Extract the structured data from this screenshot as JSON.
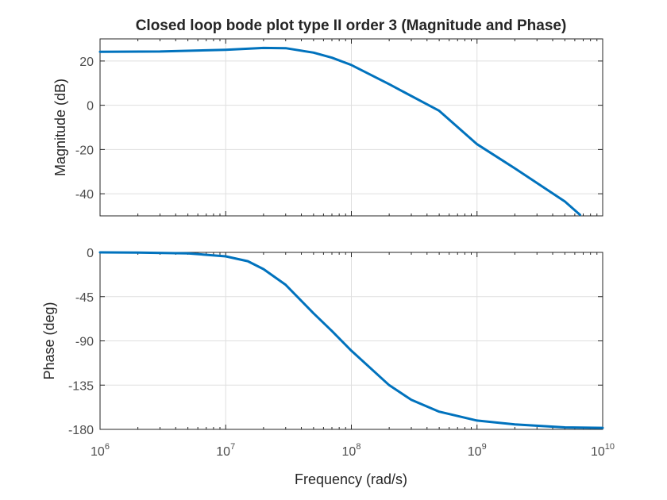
{
  "title": "Closed loop bode plot type II order 3 (Magnitude and Phase)",
  "xlabel": "Frequency (rad/s)",
  "colors": {
    "line": "#0072BD",
    "axes": "#262626",
    "grid": "#dfdfdf",
    "tick_text": "#4d4d4d"
  },
  "chart_data": [
    {
      "type": "line",
      "name": "magnitude",
      "ylabel": "Magnitude (dB)",
      "xscale": "log",
      "xlim": [
        1000000,
        10000000000
      ],
      "ylim": [
        -50,
        30
      ],
      "yticks": [
        20,
        0,
        -20,
        -40
      ],
      "grid": true,
      "series": [
        {
          "x": [
            1000000,
            3000000,
            10000000,
            20000000,
            30000000,
            50000000,
            70000000,
            100000000,
            200000000,
            500000000,
            1000000000,
            2000000000,
            5000000000,
            6600000000
          ],
          "y": [
            24.2,
            24.3,
            25.1,
            25.9,
            25.8,
            23.8,
            21.5,
            18.2,
            9.5,
            -2.5,
            -17.6,
            -28.5,
            -43.5,
            -49.5
          ]
        }
      ]
    },
    {
      "type": "line",
      "name": "phase",
      "ylabel": "Phase (deg)",
      "xlabel": "Frequency (rad/s)",
      "xscale": "log",
      "xlim": [
        1000000,
        10000000000
      ],
      "ylim": [
        -180,
        0
      ],
      "yticks": [
        0,
        -45,
        -90,
        -135,
        -180
      ],
      "xticks": [
        1000000,
        10000000,
        100000000,
        1000000000,
        10000000000
      ],
      "xtick_labels": [
        {
          "base": "10",
          "exp": "6"
        },
        {
          "base": "10",
          "exp": "7"
        },
        {
          "base": "10",
          "exp": "8"
        },
        {
          "base": "10",
          "exp": "9"
        },
        {
          "base": "10",
          "exp": "10"
        }
      ],
      "grid": true,
      "series": [
        {
          "x": [
            1000000,
            2000000,
            5000000,
            10000000,
            15000000,
            20000000,
            30000000,
            50000000,
            70000000,
            100000000,
            200000000,
            300000000,
            500000000,
            1000000000,
            2000000000,
            5000000000,
            10000000000
          ],
          "y": [
            0,
            -0.2,
            -1.0,
            -4.0,
            -9,
            -17,
            -33,
            -62,
            -80,
            -100,
            -135,
            -150,
            -162,
            -171,
            -175,
            -178,
            -178.5
          ]
        }
      ]
    }
  ]
}
